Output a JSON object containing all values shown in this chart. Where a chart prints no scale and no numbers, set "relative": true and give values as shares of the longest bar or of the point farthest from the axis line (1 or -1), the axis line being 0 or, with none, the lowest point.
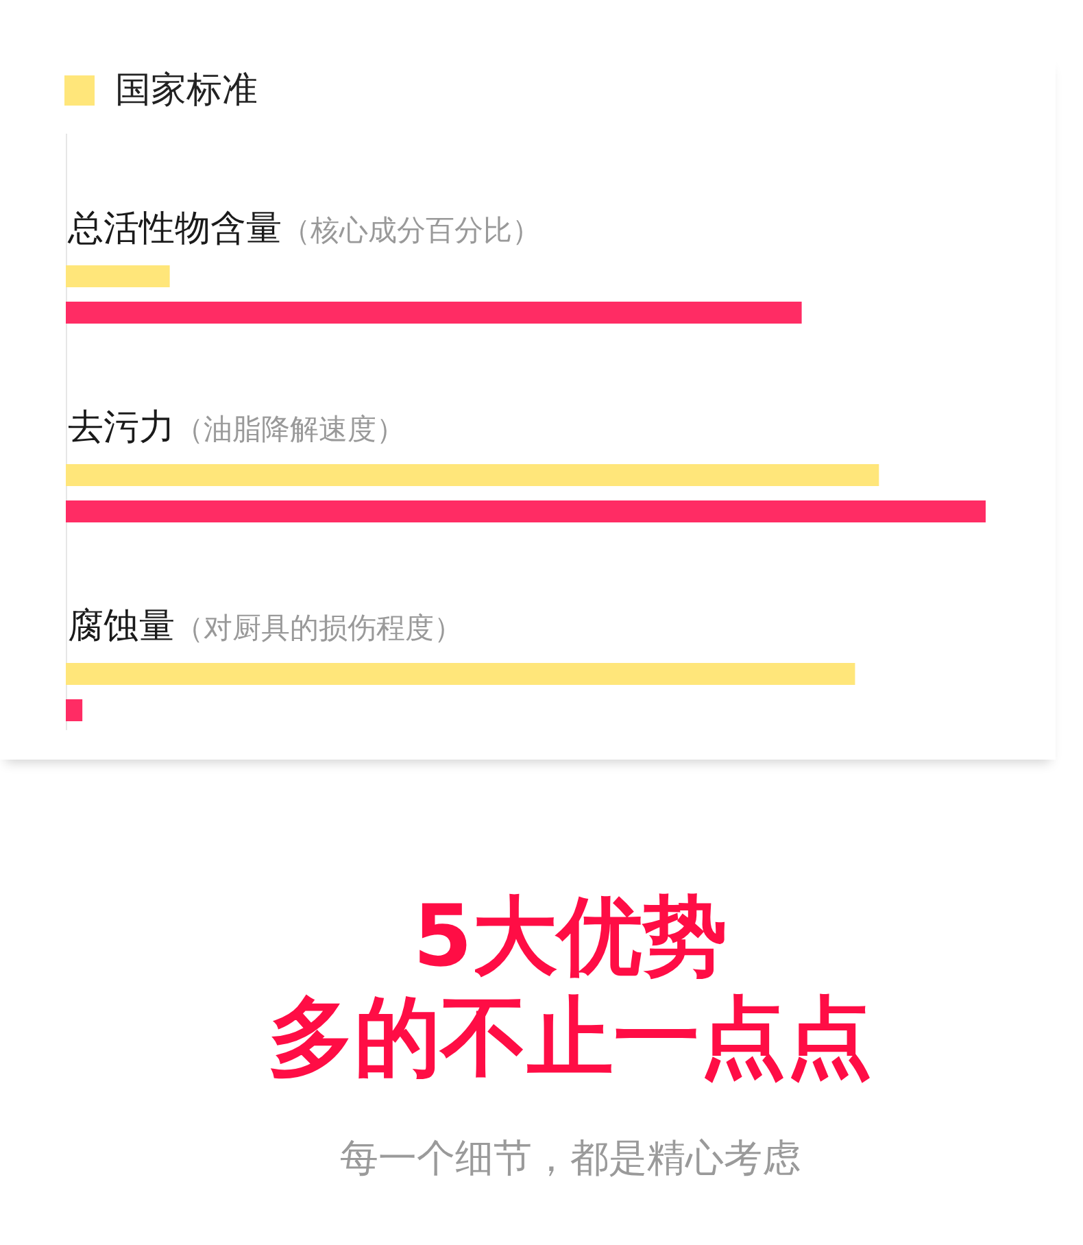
{
  "chart_data": {
    "type": "bar",
    "orientation": "horizontal",
    "relative": true,
    "categories": [
      "总活性物含量（核心成分百分比）",
      "去污力（油脂降解速度）",
      "腐蚀量（对厨具的损伤程度）"
    ],
    "series": [
      {
        "name": "国家标准",
        "color": "#ffe67a",
        "values": [
          0.113,
          0.884,
          0.858
        ]
      },
      {
        "color": "#ff2c64",
        "values": [
          0.8,
          1,
          0.018
        ]
      }
    ],
    "legend": "top left",
    "title": "5大优势",
    "subtitle": "多的不止一点点",
    "annotations": [
      "每一个细节，都是精心考虑"
    ]
  }
}
